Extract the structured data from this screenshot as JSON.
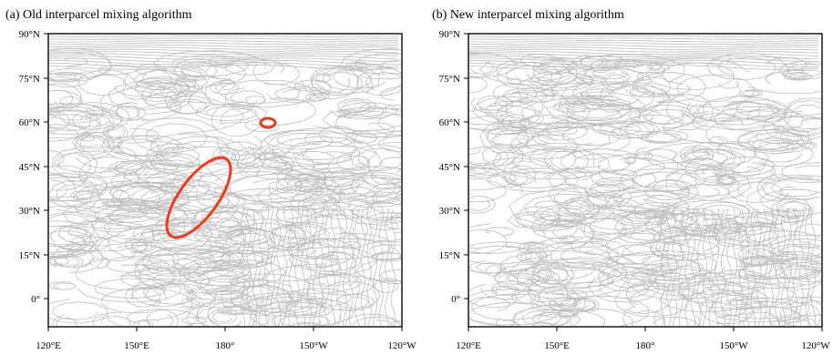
{
  "figure": {
    "panels": [
      {
        "id": "a",
        "title": "(a) Old interparcel mixing algorithm",
        "highlights": [
          {
            "shape": "ellipse",
            "lon_center": 170,
            "lat_center": 34,
            "color": "#ee3b1b"
          },
          {
            "shape": "ellipse",
            "lon_center": -165,
            "lat_center": 60,
            "color": "#ee3b1b"
          }
        ]
      },
      {
        "id": "b",
        "title": "(b) New interparcel mixing algorithm",
        "highlights": []
      }
    ],
    "lat_ticks": [
      "90°N",
      "75°N",
      "60°N",
      "45°N",
      "30°N",
      "15°N",
      "0°"
    ],
    "lon_ticks": [
      "120°E",
      "150°E",
      "180°",
      "150°W",
      "120°W"
    ],
    "colors": {
      "trajectories": "#bdbdbd",
      "highlight": "#ee3b1b",
      "frame": "#000000"
    }
  },
  "chart_data": [
    {
      "type": "map",
      "title": "(a) Old interparcel mixing algorithm",
      "xlabel": "",
      "ylabel": "",
      "lon_range": [
        120,
        240
      ],
      "lat_range": [
        -10,
        90
      ],
      "xticks": [
        "120°E",
        "150°E",
        "180°",
        "150°W",
        "120°W"
      ],
      "yticks": [
        "90°N",
        "75°N",
        "60°N",
        "45°N",
        "30°N",
        "15°N",
        "0°"
      ],
      "highlighted_regions": [
        {
          "lon": 170,
          "lat": 34
        },
        {
          "lon": 195,
          "lat": 60
        }
      ]
    },
    {
      "type": "map",
      "title": "(b) New interparcel mixing algorithm",
      "xlabel": "",
      "ylabel": "",
      "lon_range": [
        120,
        240
      ],
      "lat_range": [
        -10,
        90
      ],
      "xticks": [
        "120°E",
        "150°E",
        "180°",
        "150°W",
        "120°W"
      ],
      "yticks": [
        "90°N",
        "75°N",
        "60°N",
        "45°N",
        "30°N",
        "15°N",
        "0°"
      ],
      "highlighted_regions": []
    }
  ]
}
